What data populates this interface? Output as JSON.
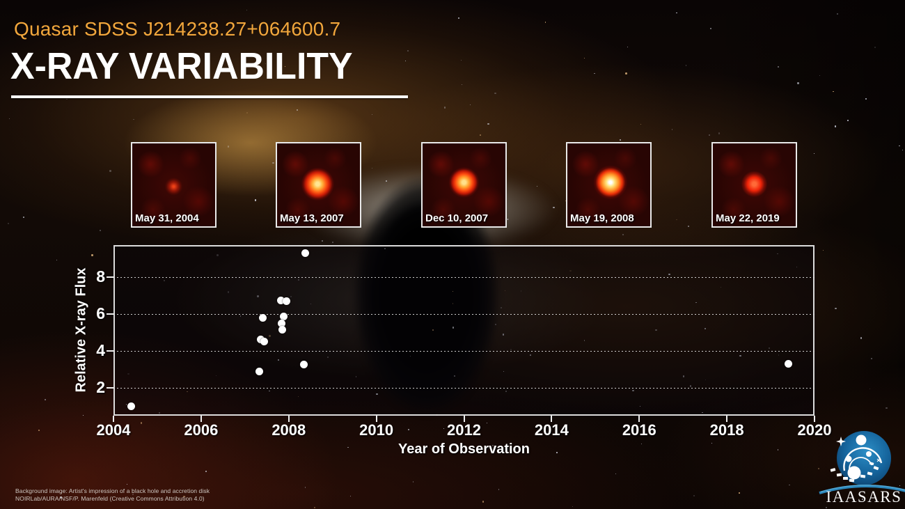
{
  "header": {
    "quasar_name": "Quasar SDSS J214238.27+064600.7",
    "title": "X-RAY VARIABILITY"
  },
  "panels": [
    {
      "date": "May 31, 2004",
      "brightness": "faint"
    },
    {
      "date": "May 13, 2007",
      "brightness": "bright"
    },
    {
      "date": "Dec 10, 2007",
      "brightness": "bright"
    },
    {
      "date": "May 19, 2008",
      "brightness": "brightest"
    },
    {
      "date": "May 22, 2019",
      "brightness": "moderate"
    }
  ],
  "chart_data": {
    "type": "scatter",
    "xlabel": "Year of Observation",
    "ylabel": "Relative X-ray Flux",
    "xlim": [
      2004,
      2020
    ],
    "ylim": [
      0.5,
      9.75
    ],
    "x_ticks": [
      2004,
      2006,
      2008,
      2010,
      2012,
      2014,
      2016,
      2018,
      2020
    ],
    "y_ticks": [
      2,
      4,
      6,
      8
    ],
    "grid": "horizontal dotted lines at y ticks",
    "legend": "none",
    "marker_color": "#FFFFFF",
    "points": [
      {
        "year": 2004.41,
        "flux": 1.0
      },
      {
        "year": 2007.33,
        "flux": 2.9
      },
      {
        "year": 2007.36,
        "flux": 4.62
      },
      {
        "year": 2007.44,
        "flux": 4.53
      },
      {
        "year": 2007.4,
        "flux": 5.79
      },
      {
        "year": 2007.82,
        "flux": 6.76
      },
      {
        "year": 2007.95,
        "flux": 6.72
      },
      {
        "year": 2007.88,
        "flux": 5.9
      },
      {
        "year": 2007.83,
        "flux": 5.49
      },
      {
        "year": 2007.86,
        "flux": 5.15
      },
      {
        "year": 2008.37,
        "flux": 9.31
      },
      {
        "year": 2008.35,
        "flux": 3.27
      },
      {
        "year": 2019.41,
        "flux": 3.31
      }
    ]
  },
  "attribution": {
    "line1": "Background image: Artist's impression of a black hole and accretion disk",
    "line2": "NOIRLab/AURA/NSF/P. Marenfeld (Creative Commons Attribution 4.0)"
  },
  "logo": {
    "text": "IAASARS"
  },
  "colors": {
    "accent_orange": "#F2A73C",
    "marker": "#FFFFFF",
    "logo_blue": "#1D7FB5",
    "background_base": "#120A06"
  }
}
